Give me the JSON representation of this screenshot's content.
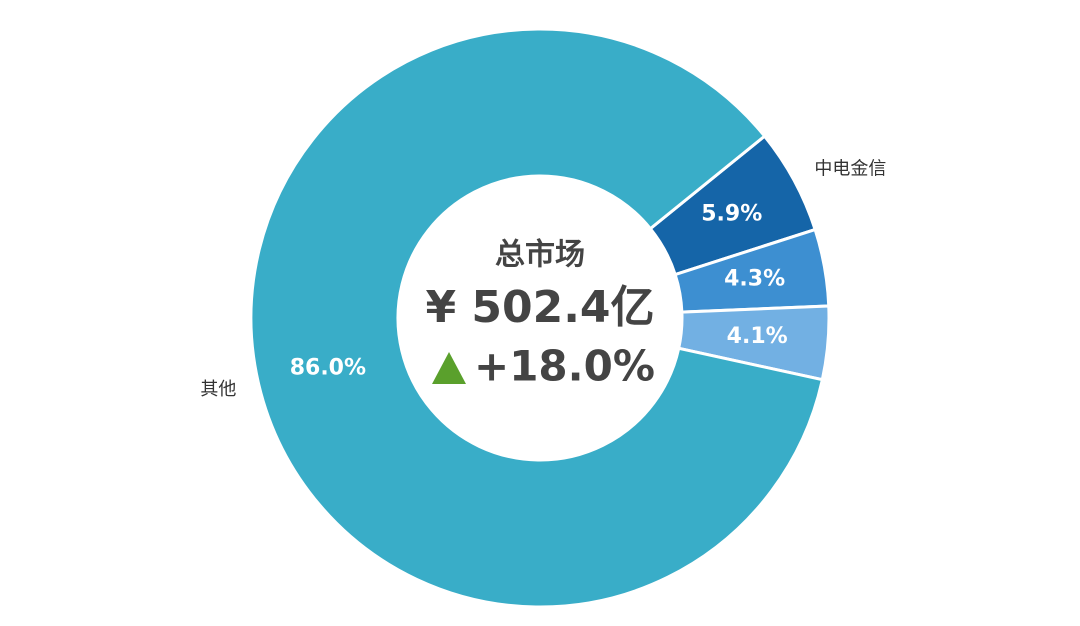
{
  "chart_data": {
    "type": "donut",
    "categories": [
      "中电金信",
      null,
      null,
      "其他"
    ],
    "values": [
      5.9,
      4.3,
      4.1,
      86.0
    ],
    "value_labels": [
      "5.9%",
      "4.3%",
      "4.1%",
      "86.0%"
    ],
    "colors": [
      "#1565a8",
      "#3d8fd1",
      "#72b0e3",
      "#39adc8"
    ],
    "center_text": {
      "title": "总市场",
      "total": "¥ 502.4亿",
      "change": "+18.0%"
    }
  }
}
